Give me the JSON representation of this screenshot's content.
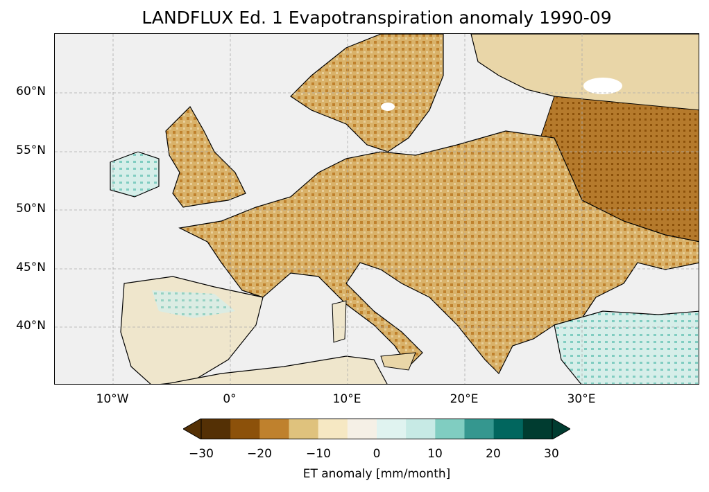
{
  "title": "LANDFLUX Ed. 1 Evapotranspiration anomaly 1990-09",
  "map": {
    "lon_range": [
      -15,
      40
    ],
    "lat_range": [
      35,
      65
    ],
    "lat_labels": [
      "60°N",
      "55°N",
      "50°N",
      "45°N",
      "40°N"
    ],
    "lon_labels": [
      "10°W",
      "0°",
      "10°E",
      "20°E",
      "30°E"
    ],
    "ocean_color": "#f0f0f0"
  },
  "colorbar": {
    "label": "ET anomaly [mm/month]",
    "ticks": [
      "−30",
      "−20",
      "−10",
      "0",
      "10",
      "20",
      "30"
    ],
    "colors": [
      "#543005",
      "#8c510a",
      "#bf812d",
      "#dfc27d",
      "#f6e8c3",
      "#f5f0e6",
      "#e0f3f0",
      "#c7eae5",
      "#80cdc1",
      "#35978f",
      "#01665e",
      "#003c30"
    ]
  }
}
